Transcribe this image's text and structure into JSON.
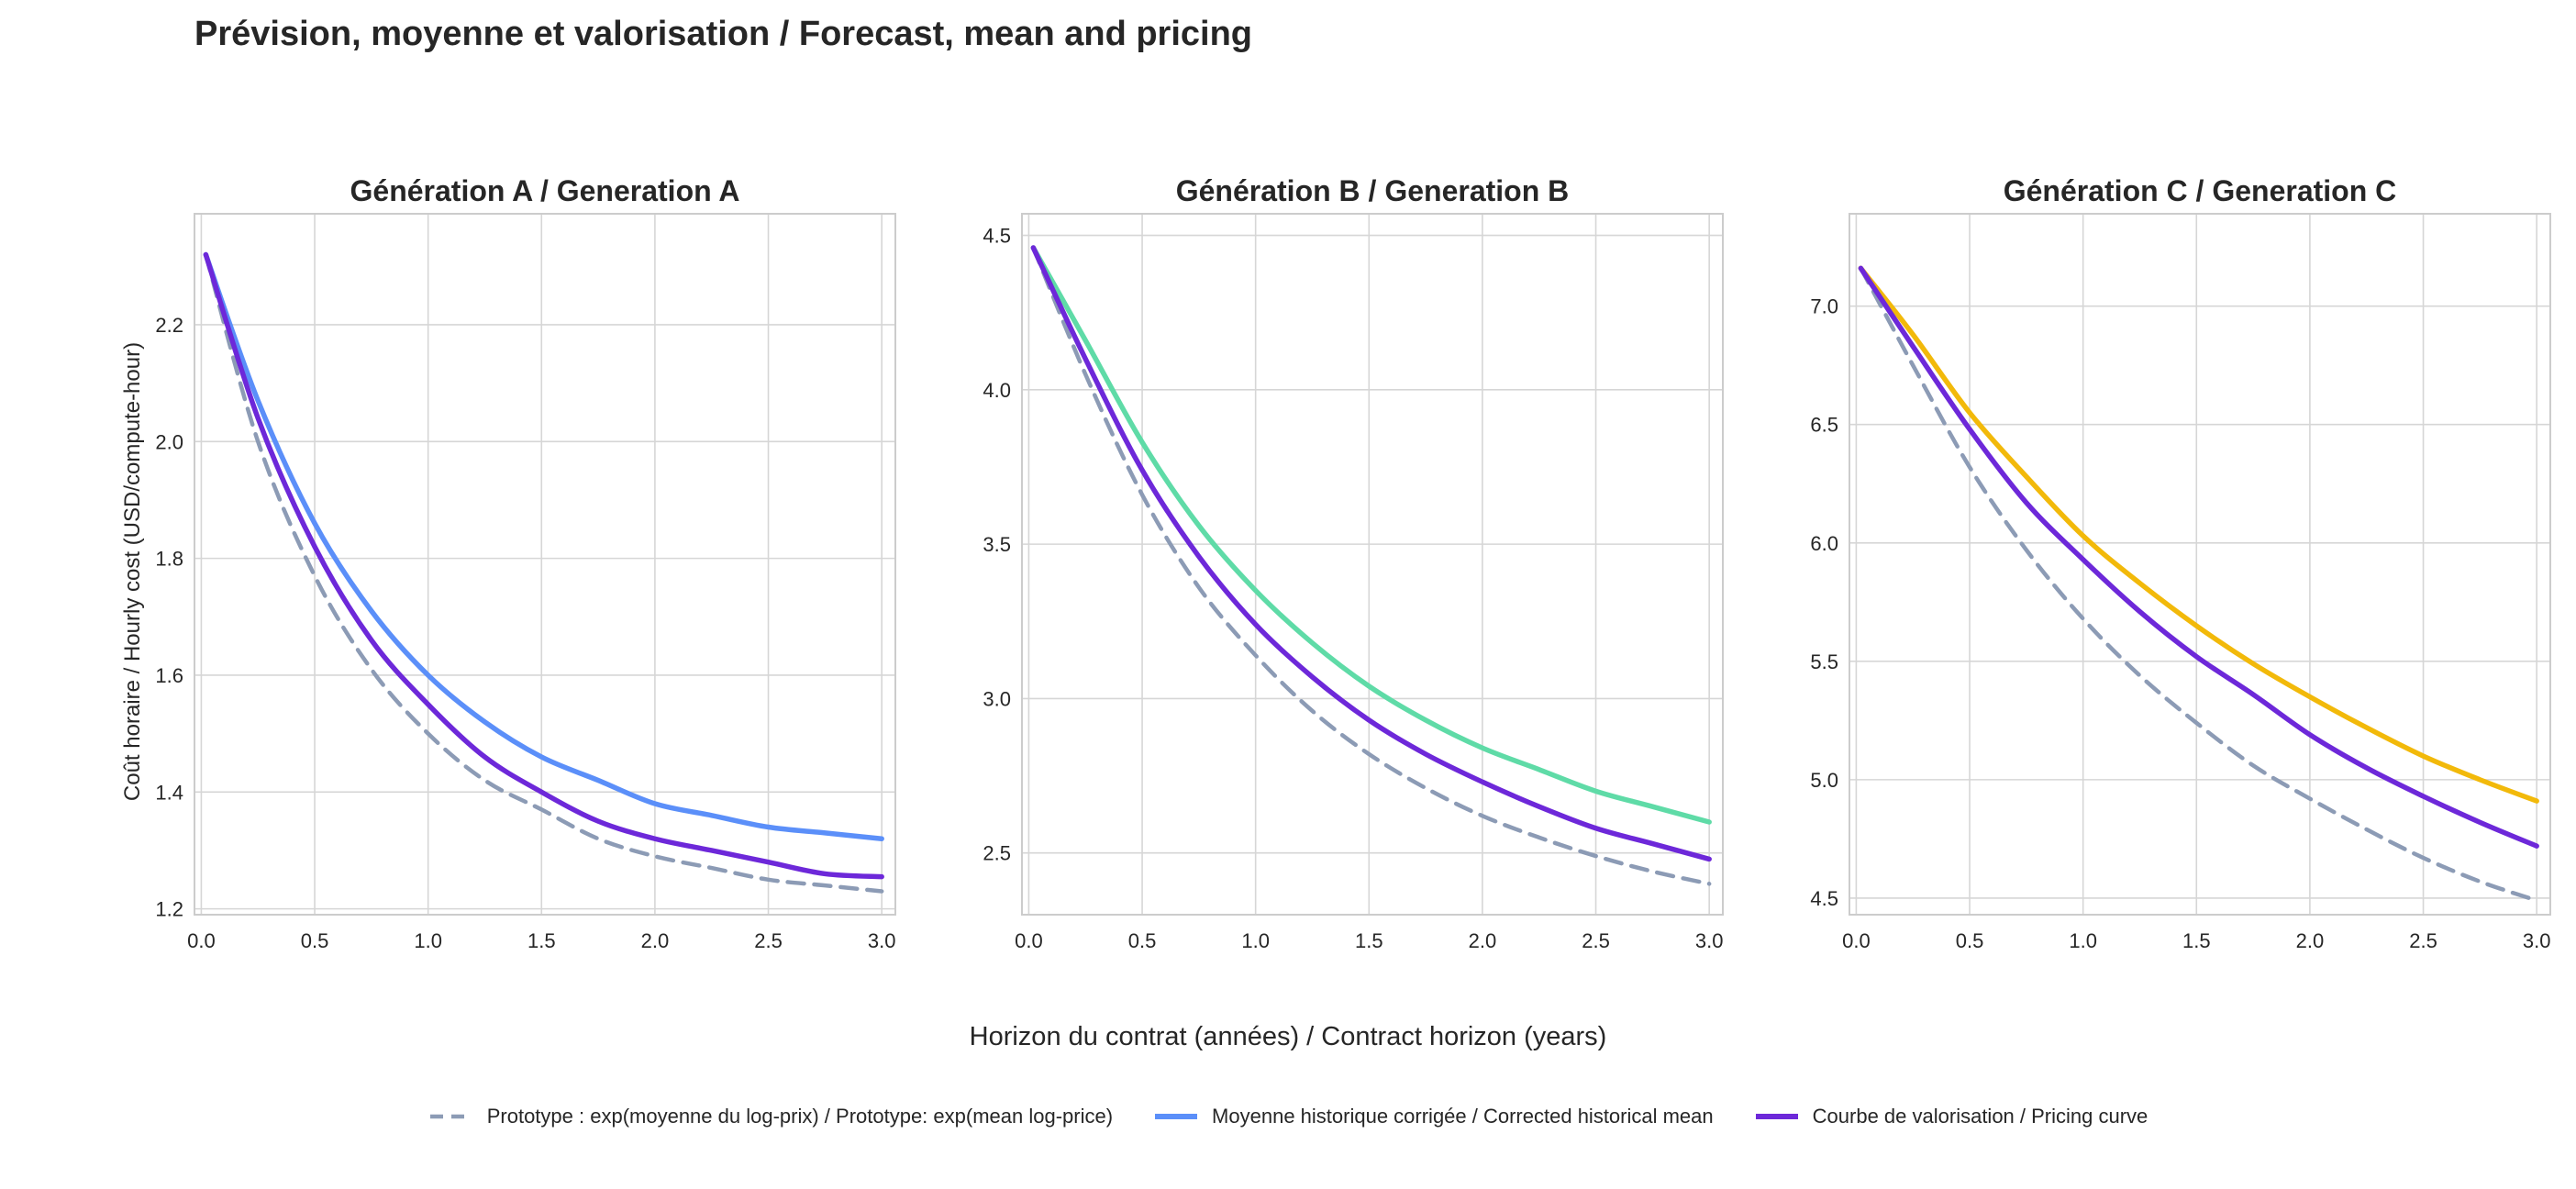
{
  "figure": {
    "title": "Prévision, moyenne et valorisation / Forecast, mean and pricing",
    "xlabel": "Horizon du contrat (années) / Contract horizon (years)",
    "ylabel": "Coût horaire / Hourly cost (USD/compute-hour)"
  },
  "legend": {
    "items": [
      {
        "label": "Prototype : exp(moyenne du log-prix) / Prototype: exp(mean log-price)",
        "color": "#8c9bb5",
        "style": "dashed"
      },
      {
        "label": "Moyenne historique corrigée / Corrected historical mean",
        "color": "#5b8ff9",
        "style": "solid"
      },
      {
        "label": "Courbe de valorisation / Pricing curve",
        "color": "#6d28d9",
        "style": "solid"
      }
    ]
  },
  "chart_data": [
    {
      "type": "line",
      "title": "Génération A / Generation A",
      "xlim": [
        -0.03,
        3.06
      ],
      "ylim": [
        1.19,
        2.39
      ],
      "xticks": [
        0.0,
        0.5,
        1.0,
        1.5,
        2.0,
        2.5,
        3.0
      ],
      "xtick_labels": [
        "0.0",
        "0.5",
        "1.0",
        "1.5",
        "2.0",
        "2.5",
        "3.0"
      ],
      "yticks": [
        1.2,
        1.4,
        1.6,
        1.8,
        2.0,
        2.2
      ],
      "ytick_labels": [
        "1.2",
        "1.4",
        "1.6",
        "1.8",
        "2.0",
        "2.2"
      ],
      "grid": true,
      "x": [
        0.02,
        0.25,
        0.5,
        0.75,
        1.0,
        1.25,
        1.5,
        1.75,
        2.0,
        2.25,
        2.5,
        2.75,
        3.0
      ],
      "series": [
        {
          "name": "Prototype : exp(moyenne du log-prix) / Prototype: exp(mean log-price)",
          "color": "#8c9bb5",
          "style": "dashed",
          "values": [
            2.32,
            2.0,
            1.77,
            1.61,
            1.5,
            1.42,
            1.37,
            1.32,
            1.29,
            1.27,
            1.25,
            1.24,
            1.23
          ]
        },
        {
          "name": "Moyenne historique corrigée / Corrected historical mean",
          "color": "#5b8ff9",
          "style": "solid",
          "values": [
            2.32,
            2.07,
            1.86,
            1.71,
            1.6,
            1.52,
            1.46,
            1.42,
            1.38,
            1.36,
            1.34,
            1.33,
            1.32
          ]
        },
        {
          "name": "Courbe de valorisation / Pricing curve",
          "color": "#6d28d9",
          "style": "solid",
          "values": [
            2.32,
            2.04,
            1.82,
            1.66,
            1.55,
            1.46,
            1.4,
            1.35,
            1.32,
            1.3,
            1.28,
            1.26,
            1.255
          ]
        }
      ]
    },
    {
      "type": "line",
      "title": "Génération B / Generation B",
      "xlim": [
        -0.03,
        3.06
      ],
      "ylim": [
        2.3,
        4.57
      ],
      "xticks": [
        0.0,
        0.5,
        1.0,
        1.5,
        2.0,
        2.5,
        3.0
      ],
      "xtick_labels": [
        "0.0",
        "0.5",
        "1.0",
        "1.5",
        "2.0",
        "2.5",
        "3.0"
      ],
      "yticks": [
        2.5,
        3.0,
        3.5,
        4.0,
        4.5
      ],
      "ytick_labels": [
        "2.5",
        "3.0",
        "3.5",
        "4.0",
        "4.5"
      ],
      "grid": true,
      "x": [
        0.02,
        0.25,
        0.5,
        0.75,
        1.0,
        1.25,
        1.5,
        1.75,
        2.0,
        2.25,
        2.5,
        2.75,
        3.0
      ],
      "series": [
        {
          "name": "Prototype : exp(moyenne du log-prix) / Prototype: exp(mean log-price)",
          "color": "#8c9bb5",
          "style": "dashed",
          "values": [
            4.46,
            4.05,
            3.66,
            3.36,
            3.14,
            2.96,
            2.82,
            2.71,
            2.62,
            2.55,
            2.49,
            2.44,
            2.4
          ]
        },
        {
          "name": "Moyenne historique corrigée / Corrected historical mean",
          "color": "#5fdba7",
          "style": "solid",
          "values": [
            4.46,
            4.16,
            3.83,
            3.56,
            3.35,
            3.18,
            3.04,
            2.93,
            2.84,
            2.77,
            2.7,
            2.65,
            2.6
          ]
        },
        {
          "name": "Courbe de valorisation / Pricing curve",
          "color": "#6d28d9",
          "style": "solid",
          "values": [
            4.46,
            4.1,
            3.74,
            3.46,
            3.24,
            3.07,
            2.93,
            2.82,
            2.73,
            2.65,
            2.58,
            2.53,
            2.48
          ]
        }
      ]
    },
    {
      "type": "line",
      "title": "Génération C / Generation C",
      "xlim": [
        -0.03,
        3.06
      ],
      "ylim": [
        4.43,
        7.39
      ],
      "xticks": [
        0.0,
        0.5,
        1.0,
        1.5,
        2.0,
        2.5,
        3.0
      ],
      "xtick_labels": [
        "0.0",
        "0.5",
        "1.0",
        "1.5",
        "2.0",
        "2.5",
        "3.0"
      ],
      "yticks": [
        4.5,
        5.0,
        5.5,
        6.0,
        6.5,
        7.0
      ],
      "ytick_labels": [
        "4.5",
        "5.0",
        "5.5",
        "6.0",
        "6.5",
        "7.0"
      ],
      "grid": true,
      "x": [
        0.02,
        0.25,
        0.5,
        0.75,
        1.0,
        1.25,
        1.5,
        1.75,
        2.0,
        2.25,
        2.5,
        2.75,
        3.0
      ],
      "series": [
        {
          "name": "Prototype : exp(moyenne du log-prix) / Prototype: exp(mean log-price)",
          "color": "#8c9bb5",
          "style": "dashed",
          "values": [
            7.16,
            6.75,
            6.32,
            5.97,
            5.68,
            5.44,
            5.24,
            5.06,
            4.92,
            4.79,
            4.67,
            4.57,
            4.49
          ]
        },
        {
          "name": "Moyenne historique corrigée / Corrected historical mean",
          "color": "#f2b90a",
          "style": "solid",
          "values": [
            7.16,
            6.88,
            6.55,
            6.28,
            6.03,
            5.83,
            5.65,
            5.49,
            5.35,
            5.22,
            5.1,
            5.0,
            4.91
          ]
        },
        {
          "name": "Courbe de valorisation / Pricing curve",
          "color": "#6d28d9",
          "style": "solid",
          "values": [
            7.16,
            6.83,
            6.48,
            6.17,
            5.93,
            5.71,
            5.52,
            5.36,
            5.19,
            5.05,
            4.93,
            4.82,
            4.72
          ]
        }
      ]
    }
  ]
}
